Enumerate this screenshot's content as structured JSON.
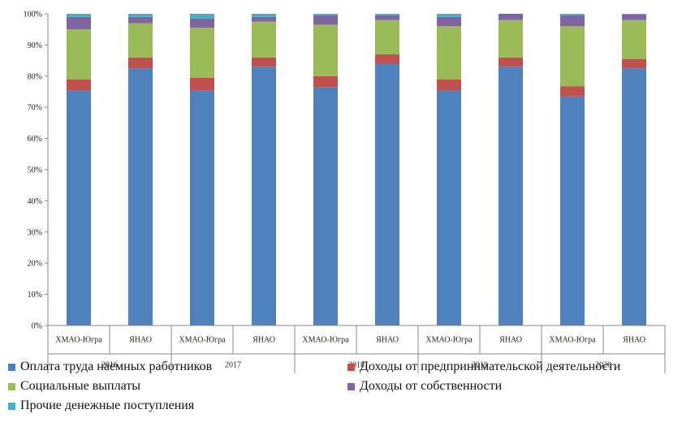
{
  "chart_data": {
    "type": "bar",
    "stacked": true,
    "percent": true,
    "ylim": [
      0,
      100
    ],
    "y_ticks": [
      "0%",
      "10%",
      "20%",
      "30%",
      "40%",
      "50%",
      "60%",
      "70%",
      "80%",
      "90%",
      "100%"
    ],
    "categories": [
      "ХМАО-Югра",
      "ЯНАО",
      "ХМАО-Югра",
      "ЯНАО",
      "ХМАО-Югра",
      "ЯНАО",
      "ХМАО-Югра",
      "ЯНАО",
      "ХМАО-Югра",
      "ЯНАО"
    ],
    "groups": [
      "2016",
      "2017",
      "2018",
      "2019",
      "2020"
    ],
    "series": [
      {
        "name": "Оплата труда наемных работников",
        "color": "#4F81BD",
        "values": [
          75.5,
          82.5,
          75.5,
          83,
          76.5,
          84,
          75.5,
          83,
          73.5,
          82.5
        ]
      },
      {
        "name": "Доходы от предпринимательской  деятельности",
        "color": "#C0504D",
        "values": [
          3.5,
          3.5,
          4,
          3,
          3.5,
          3,
          3.5,
          3,
          3.2,
          3
        ]
      },
      {
        "name": "Социальные выплаты",
        "color": "#9BBB59",
        "values": [
          16,
          11,
          16,
          11.5,
          16.5,
          11,
          17,
          12,
          19.3,
          12.5
        ]
      },
      {
        "name": "Доходы от собственности",
        "color": "#8064A2",
        "values": [
          4,
          2,
          3,
          1.5,
          3,
          1.5,
          3,
          2,
          3.5,
          1.8
        ]
      },
      {
        "name": "Прочие денежные поступления",
        "color": "#4BACC6",
        "values": [
          1,
          1,
          1.5,
          1,
          0.5,
          0.5,
          1,
          0,
          0.5,
          0.2
        ]
      }
    ],
    "legend_position": "bottom",
    "grid": false
  }
}
